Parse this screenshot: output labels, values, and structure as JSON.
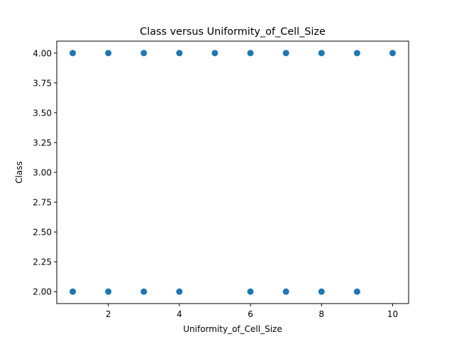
{
  "chart_data": {
    "type": "scatter",
    "title": "Class versus Uniformity_of_Cell_Size",
    "xlabel": "Uniformity_of_Cell_Size",
    "ylabel": "Class",
    "xlim": [
      0.55,
      10.45
    ],
    "ylim": [
      1.9,
      4.1
    ],
    "xticks": [
      2,
      4,
      6,
      8,
      10
    ],
    "xtick_labels": [
      "2",
      "4",
      "6",
      "8",
      "10"
    ],
    "yticks": [
      2.0,
      2.25,
      2.5,
      2.75,
      3.0,
      3.25,
      3.5,
      3.75,
      4.0
    ],
    "ytick_labels": [
      "2.00",
      "2.25",
      "2.50",
      "2.75",
      "3.00",
      "3.25",
      "3.50",
      "3.75",
      "4.00"
    ],
    "grid": false,
    "marker_color": "#1f77b4",
    "series": [
      {
        "points": [
          [
            1,
            2
          ],
          [
            2,
            2
          ],
          [
            3,
            2
          ],
          [
            4,
            2
          ],
          [
            6,
            2
          ],
          [
            7,
            2
          ],
          [
            8,
            2
          ],
          [
            9,
            2
          ],
          [
            1,
            4
          ],
          [
            2,
            4
          ],
          [
            3,
            4
          ],
          [
            4,
            4
          ],
          [
            5,
            4
          ],
          [
            6,
            4
          ],
          [
            7,
            4
          ],
          [
            8,
            4
          ],
          [
            9,
            4
          ],
          [
            10,
            4
          ]
        ]
      }
    ]
  }
}
